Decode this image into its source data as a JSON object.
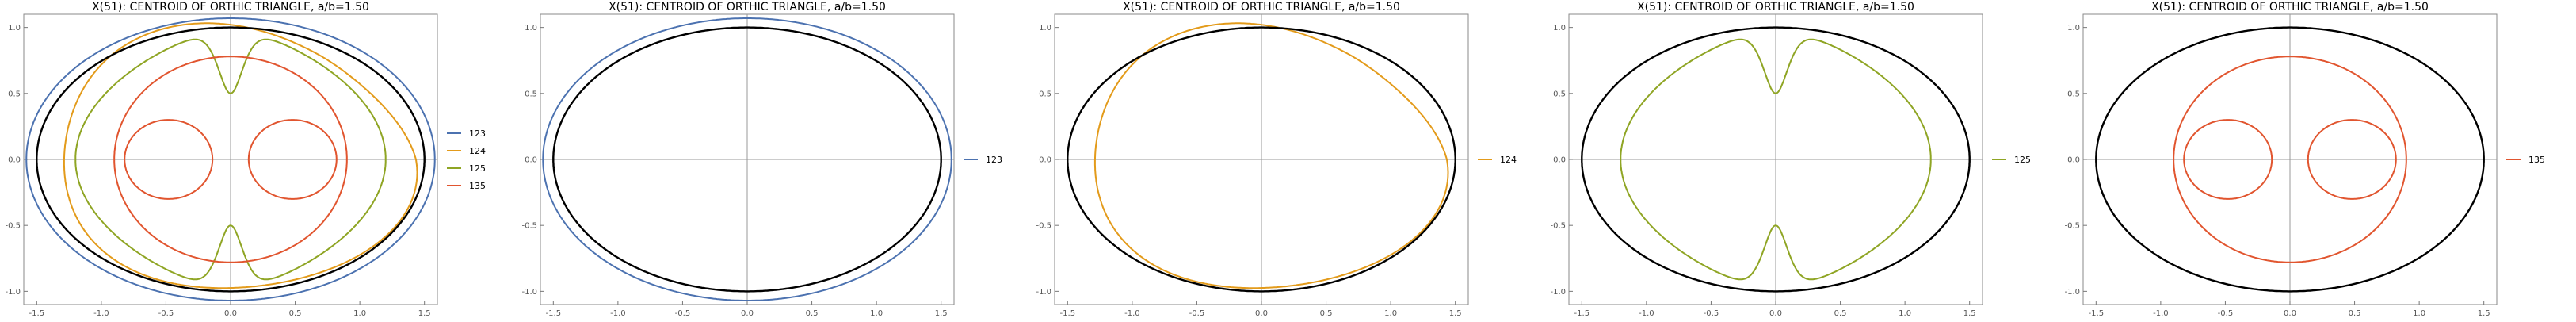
{
  "chart_data": [
    {
      "type": "line",
      "title": "X(51): CENTROID OF ORTHIC TRIANGLE, a/b=1.50",
      "xlim": [
        -1.6,
        1.6
      ],
      "ylim": [
        -1.1,
        1.1
      ],
      "xticks": [
        -1.5,
        -1.0,
        -0.5,
        0.0,
        0.5,
        1.0,
        1.5
      ],
      "yticks": [
        -1.0,
        -0.5,
        0.0,
        0.5,
        1.0
      ],
      "series": [
        {
          "name": "123",
          "curve": "ellipse-123",
          "color": "#4C72B0"
        },
        {
          "name": "124",
          "curve": "curve-124",
          "color": "#E39B1B"
        },
        {
          "name": "125",
          "curve": "curve-125",
          "color": "#8FA524"
        },
        {
          "name": "135",
          "curve": "curve-135",
          "color": "#E1552F"
        }
      ],
      "reference": {
        "curve": "ellipse-base",
        "color": "#000000"
      }
    },
    {
      "type": "line",
      "title": "X(51): CENTROID OF ORTHIC TRIANGLE, a/b=1.50",
      "xlim": [
        -1.6,
        1.6
      ],
      "ylim": [
        -1.1,
        1.1
      ],
      "xticks": [
        -1.5,
        -1.0,
        -0.5,
        0.0,
        0.5,
        1.0,
        1.5
      ],
      "yticks": [
        -1.0,
        -0.5,
        0.0,
        0.5,
        1.0
      ],
      "series": [
        {
          "name": "123",
          "curve": "ellipse-123",
          "color": "#4C72B0"
        }
      ],
      "reference": {
        "curve": "ellipse-base",
        "color": "#000000"
      }
    },
    {
      "type": "line",
      "title": "X(51): CENTROID OF ORTHIC TRIANGLE, a/b=1.50",
      "xlim": [
        -1.6,
        1.6
      ],
      "ylim": [
        -1.1,
        1.1
      ],
      "xticks": [
        -1.5,
        -1.0,
        -0.5,
        0.0,
        0.5,
        1.0,
        1.5
      ],
      "yticks": [
        -1.0,
        -0.5,
        0.0,
        0.5,
        1.0
      ],
      "series": [
        {
          "name": "124",
          "curve": "curve-124",
          "color": "#E39B1B"
        }
      ],
      "reference": {
        "curve": "ellipse-base",
        "color": "#000000"
      }
    },
    {
      "type": "line",
      "title": "X(51): CENTROID OF ORTHIC TRIANGLE, a/b=1.50",
      "xlim": [
        -1.6,
        1.6
      ],
      "ylim": [
        -1.1,
        1.1
      ],
      "xticks": [
        -1.5,
        -1.0,
        -0.5,
        0.0,
        0.5,
        1.0,
        1.5
      ],
      "yticks": [
        -1.0,
        -0.5,
        0.0,
        0.5,
        1.0
      ],
      "series": [
        {
          "name": "125",
          "curve": "curve-125",
          "color": "#8FA524"
        }
      ],
      "reference": {
        "curve": "ellipse-base",
        "color": "#000000"
      }
    },
    {
      "type": "line",
      "title": "X(51): CENTROID OF ORTHIC TRIANGLE, a/b=1.50",
      "xlim": [
        -1.6,
        1.6
      ],
      "ylim": [
        -1.1,
        1.1
      ],
      "xticks": [
        -1.5,
        -1.0,
        -0.5,
        0.0,
        0.5,
        1.0,
        1.5
      ],
      "yticks": [
        -1.0,
        -0.5,
        0.0,
        0.5,
        1.0
      ],
      "series": [
        {
          "name": "135",
          "curve": "curve-135",
          "color": "#E1552F"
        }
      ],
      "reference": {
        "curve": "ellipse-base",
        "color": "#000000"
      }
    }
  ]
}
